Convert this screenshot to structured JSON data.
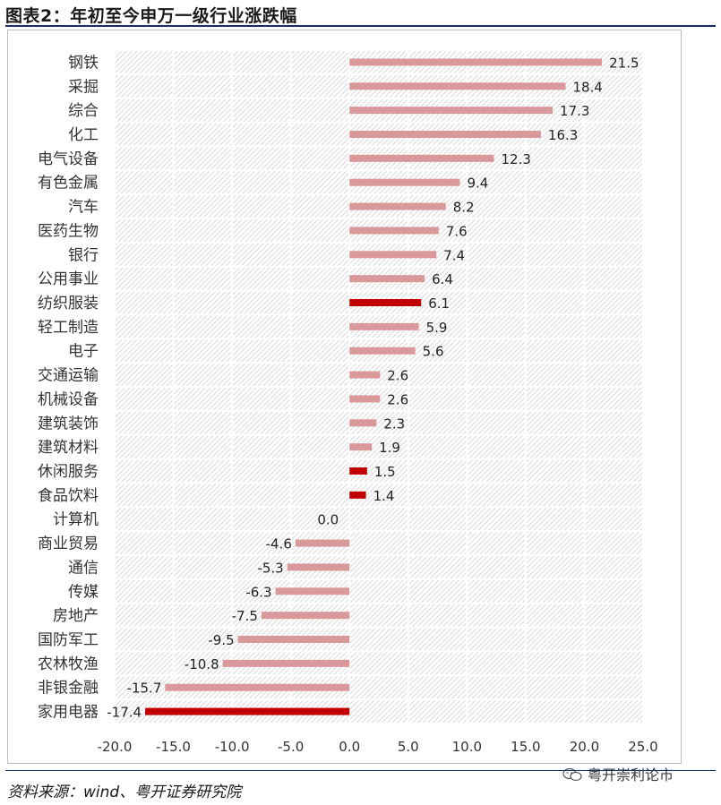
{
  "figure": {
    "title": "图表2：年初至今申万一级行业涨跌幅",
    "source": "资料来源：wind、粤开证券研究院",
    "watermark": "粤开崇利论市",
    "watermark_icon": "wechat-icon"
  },
  "colors": {
    "bar_normal": "#d9999b",
    "bar_highlight": "#c00000",
    "title_rule": "#1b2b6a",
    "hatch": "#c8c8c8"
  },
  "chart_data": {
    "type": "bar",
    "orientation": "horizontal",
    "title": "",
    "xlabel": "",
    "ylabel": "",
    "xlim": [
      -20,
      25
    ],
    "xticks": [
      -20,
      -15,
      -10,
      -5,
      0,
      5,
      10,
      15,
      20,
      25
    ],
    "tick_labels": [
      "-20.0",
      "-15.0",
      "-10.0",
      "-5.0",
      "0.0",
      "5.0",
      "10.0",
      "15.0",
      "20.0",
      "25.0"
    ],
    "grid": "vertical",
    "background": "diagonal hatch",
    "categories": [
      "钢铁",
      "采掘",
      "综合",
      "化工",
      "电气设备",
      "有色金属",
      "汽车",
      "医药生物",
      "银行",
      "公用事业",
      "纺织服装",
      "轻工制造",
      "电子",
      "交通运输",
      "机械设备",
      "建筑装饰",
      "建筑材料",
      "休闲服务",
      "食品饮料",
      "计算机",
      "商业贸易",
      "通信",
      "传媒",
      "房地产",
      "国防军工",
      "农林牧渔",
      "非银金融",
      "家用电器"
    ],
    "values": [
      21.5,
      18.4,
      17.3,
      16.3,
      12.3,
      9.4,
      8.2,
      7.6,
      7.4,
      6.4,
      6.1,
      5.9,
      5.6,
      2.6,
      2.6,
      2.3,
      1.9,
      1.5,
      1.4,
      0.0,
      -4.6,
      -5.3,
      -6.3,
      -7.5,
      -9.5,
      -10.8,
      -15.7,
      -17.4
    ],
    "value_labels": [
      "21.5",
      "18.4",
      "17.3",
      "16.3",
      "12.3",
      "9.4",
      "8.2",
      "7.6",
      "7.4",
      "6.4",
      "6.1",
      "5.9",
      "5.6",
      "2.6",
      "2.6",
      "2.3",
      "1.9",
      "1.5",
      "1.4",
      "0.0",
      "-4.6",
      "-5.3",
      "-6.3",
      "-7.5",
      "-9.5",
      "-10.8",
      "-15.7",
      "-17.4"
    ],
    "highlighted": [
      "纺织服装",
      "休闲服务",
      "食品饮料",
      "家用电器"
    ]
  }
}
